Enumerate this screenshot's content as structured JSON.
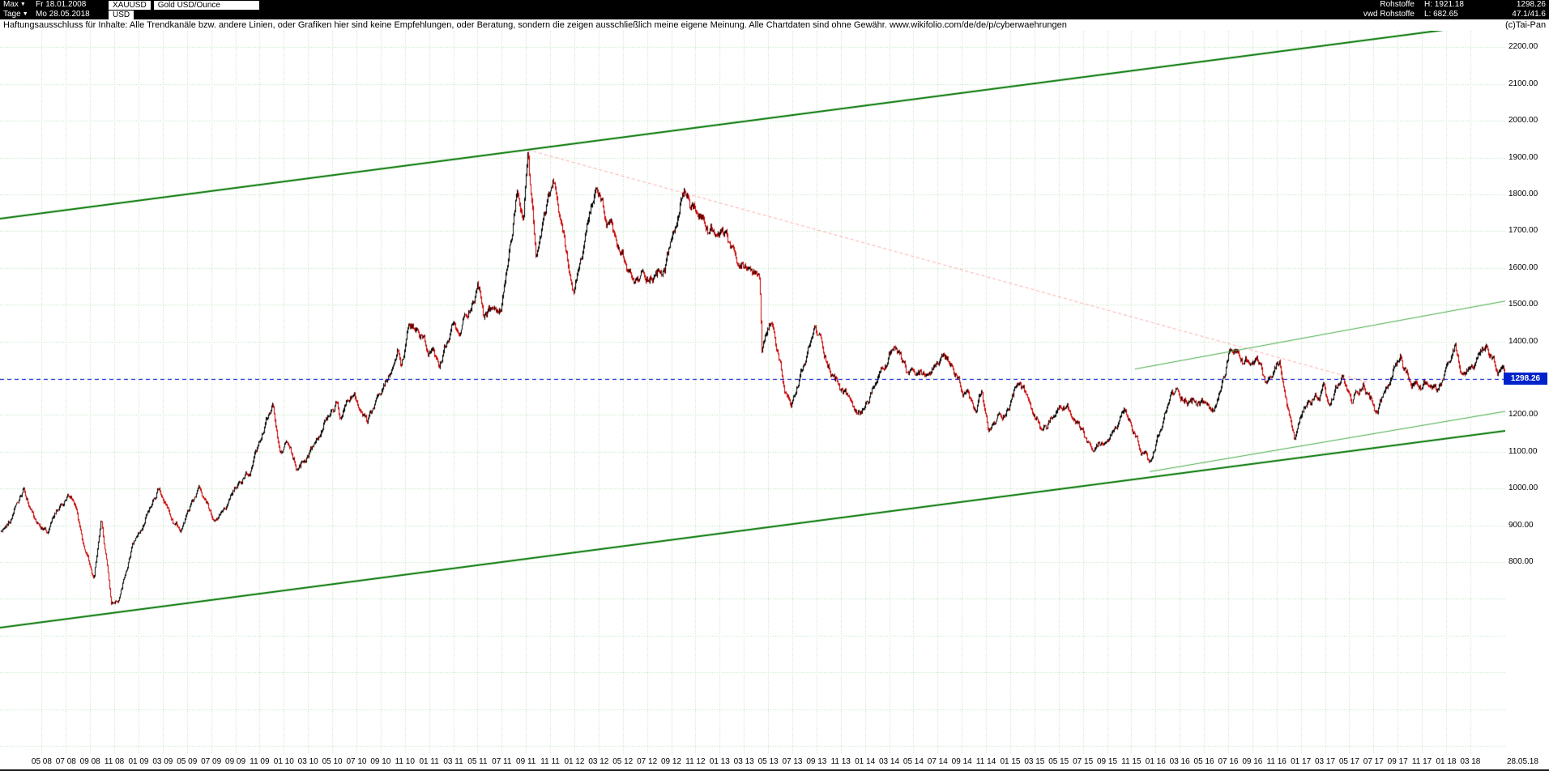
{
  "header": {
    "range_selector": "Max",
    "start_date": "Fr 18.01.2008",
    "symbol": "XAUUSD",
    "instrument_name": "Gold USD/Ounce",
    "period_selector": "Tage",
    "end_date": "Mo 28.05.2018",
    "currency": "USD",
    "category": "Rohstoffe",
    "feed": "vwd Rohstoffe",
    "high_label": "H: 1921.18",
    "low_label": "L: 682.65",
    "last_price": "1298.26",
    "change": "47.1/41.6"
  },
  "disclaimer": {
    "text": "Haftungsausschluss für Inhalte: Alle Trendkanäle bzw. andere Linien, oder Grafiken hier sind keine Empfehlungen, oder Beratung, sondern die zeigen ausschließlich meine eigene Meinung. Alle Chartdaten sind ohne Gewähr.  www.wikifolio.com/de/de/p/cyberwaehrungen",
    "copyright": "(c)Tai-Pan"
  },
  "chart_data": {
    "type": "candlestick",
    "title": "Gold USD/Ounce",
    "symbol": "XAUUSD",
    "currency": "USD",
    "x_range": [
      "2008-01-18",
      "2018-05-28"
    ],
    "y_range": [
      276,
      2245
    ],
    "grid_step": 100,
    "grid": "dotted-green",
    "high": 1921.18,
    "low": 682.65,
    "last_price": 1298.26,
    "last_price_label": "1298.26",
    "y_axis_labels": [
      "2200.00",
      "2100.00",
      "2000.00",
      "1900.00",
      "1800.00",
      "1700.00",
      "1600.00",
      "1500.00",
      "1400.00",
      "1200.00",
      "1100.00",
      "1000.00",
      "900.00",
      "800.00"
    ],
    "x_axis_labels": [
      "05 08",
      "07 08",
      "09 08",
      "11 08",
      "01 09",
      "03 09",
      "05 09",
      "07 09",
      "09 09",
      "11 09",
      "01 10",
      "03 10",
      "05 10",
      "07 10",
      "09 10",
      "11 10",
      "01 11",
      "03 11",
      "05 11",
      "07 11",
      "09 11",
      "11 11",
      "01 12",
      "03 12",
      "05 12",
      "07 12",
      "09 12",
      "11 12",
      "01 13",
      "03 13",
      "05 13",
      "07 13",
      "09 13",
      "11 13",
      "01 14",
      "03 14",
      "05 14",
      "07 14",
      "09 14",
      "11 14",
      "01 15",
      "03 15",
      "05 15",
      "07 15",
      "09 15",
      "11 15",
      "01 16",
      "03 16",
      "05 16",
      "07 16",
      "09 16",
      "11 16",
      "01 17",
      "03 17",
      "05 17",
      "07 17",
      "09 17",
      "11 17",
      "01 18",
      "03 18"
    ],
    "x_axis_end_label": "28.05.18",
    "series_monthly": [
      [
        "2008-01-18",
        881
      ],
      [
        "2008-02-15",
        922
      ],
      [
        "2008-03-17",
        1011
      ],
      [
        "2008-04-15",
        910
      ],
      [
        "2008-05-15",
        885
      ],
      [
        "2008-07-15",
        978
      ],
      [
        "2008-08-15",
        833
      ],
      [
        "2008-09-11",
        745
      ],
      [
        "2008-09-29",
        905
      ],
      [
        "2008-10-24",
        690
      ],
      [
        "2008-11-13",
        705
      ],
      [
        "2008-12-15",
        840
      ],
      [
        "2009-01-15",
        900
      ],
      [
        "2009-02-20",
        995
      ],
      [
        "2009-03-18",
        925
      ],
      [
        "2009-04-15",
        880
      ],
      [
        "2009-06-01",
        980
      ],
      [
        "2009-07-08",
        910
      ],
      [
        "2009-08-15",
        950
      ],
      [
        "2009-09-15",
        1000
      ],
      [
        "2009-10-15",
        1050
      ],
      [
        "2009-12-03",
        1215
      ],
      [
        "2009-12-22",
        1080
      ],
      [
        "2010-01-15",
        1120
      ],
      [
        "2010-02-05",
        1060
      ],
      [
        "2010-03-15",
        1110
      ],
      [
        "2010-05-12",
        1230
      ],
      [
        "2010-05-21",
        1180
      ],
      [
        "2010-06-21",
        1258
      ],
      [
        "2010-07-28",
        1160
      ],
      [
        "2010-09-15",
        1270
      ],
      [
        "2010-10-14",
        1375
      ],
      [
        "2010-10-22",
        1320
      ],
      [
        "2010-11-09",
        1410
      ],
      [
        "2010-12-15",
        1390
      ],
      [
        "2011-01-27",
        1310
      ],
      [
        "2011-03-02",
        1435
      ],
      [
        "2011-03-15",
        1395
      ],
      [
        "2011-05-02",
        1565
      ],
      [
        "2011-05-17",
        1480
      ],
      [
        "2011-07-01",
        1480
      ],
      [
        "2011-08-10",
        1800
      ],
      [
        "2011-08-25",
        1705
      ],
      [
        "2011-09-06",
        1920
      ],
      [
        "2011-09-26",
        1624
      ],
      [
        "2011-11-08",
        1800
      ],
      [
        "2011-12-29",
        1531
      ],
      [
        "2012-02-28",
        1785
      ],
      [
        "2012-04-15",
        1640
      ],
      [
        "2012-05-30",
        1540
      ],
      [
        "2012-07-15",
        1590
      ],
      [
        "2012-08-15",
        1600
      ],
      [
        "2012-10-04",
        1796
      ],
      [
        "2012-11-15",
        1720
      ],
      [
        "2012-12-15",
        1690
      ],
      [
        "2013-01-15",
        1660
      ],
      [
        "2013-02-21",
        1572
      ],
      [
        "2013-03-15",
        1600
      ],
      [
        "2013-04-11",
        1561
      ],
      [
        "2013-04-16",
        1360
      ],
      [
        "2013-05-10",
        1420
      ],
      [
        "2013-06-27",
        1192
      ],
      [
        "2013-08-27",
        1420
      ],
      [
        "2013-10-15",
        1310
      ],
      [
        "2013-12-19",
        1188
      ],
      [
        "2014-01-15",
        1250
      ],
      [
        "2014-03-14",
        1382
      ],
      [
        "2014-04-15",
        1290
      ],
      [
        "2014-05-15",
        1290
      ],
      [
        "2014-07-10",
        1339
      ],
      [
        "2014-08-15",
        1290
      ],
      [
        "2014-10-06",
        1190
      ],
      [
        "2014-10-21",
        1250
      ],
      [
        "2014-11-07",
        1140
      ],
      [
        "2014-12-15",
        1200
      ],
      [
        "2015-01-22",
        1300
      ],
      [
        "2015-03-17",
        1150
      ],
      [
        "2015-05-18",
        1225
      ],
      [
        "2015-07-24",
        1080
      ],
      [
        "2015-10-14",
        1185
      ],
      [
        "2015-12-17",
        1046
      ],
      [
        "2016-02-11",
        1245
      ],
      [
        "2016-03-15",
        1250
      ],
      [
        "2016-04-15",
        1240
      ],
      [
        "2016-05-30",
        1205
      ],
      [
        "2016-07-06",
        1370
      ],
      [
        "2016-08-15",
        1340
      ],
      [
        "2016-09-15",
        1325
      ],
      [
        "2016-10-07",
        1255
      ],
      [
        "2016-11-09",
        1330
      ],
      [
        "2016-12-15",
        1128
      ],
      [
        "2017-01-15",
        1200
      ],
      [
        "2017-02-27",
        1255
      ],
      [
        "2017-03-10",
        1200
      ],
      [
        "2017-04-13",
        1288
      ],
      [
        "2017-05-09",
        1218
      ],
      [
        "2017-06-06",
        1294
      ],
      [
        "2017-07-10",
        1210
      ],
      [
        "2017-09-08",
        1351
      ],
      [
        "2017-10-06",
        1270
      ],
      [
        "2017-11-15",
        1280
      ],
      [
        "2017-12-12",
        1240
      ],
      [
        "2018-01-25",
        1366
      ],
      [
        "2018-02-08",
        1310
      ],
      [
        "2018-03-15",
        1325
      ],
      [
        "2018-04-11",
        1355
      ],
      [
        "2018-05-21",
        1292
      ],
      [
        "2018-05-28",
        1298.26
      ]
    ],
    "trend_lines": [
      {
        "name": "upper-channel-line",
        "color": "#007500",
        "width": 2,
        "dash": [],
        "from": [
          "2008-01-18",
          1734
        ],
        "to": [
          "2018-05-28",
          2269
        ]
      },
      {
        "name": "lower-channel-line",
        "color": "#007500",
        "width": 2,
        "dash": [],
        "from": [
          "2008-01-18",
          622
        ],
        "to": [
          "2018-05-28",
          1157
        ]
      },
      {
        "name": "downtrend-dashed-line",
        "color": "#ffaaaa",
        "width": 1,
        "dash": [
          4,
          3
        ],
        "from": [
          "2011-09-06",
          1921.18
        ],
        "to": [
          "2017-06-15",
          1290
        ]
      },
      {
        "name": "inner-uptrend-upper-line",
        "color": "#44aa44",
        "width": 1,
        "dash": [],
        "from": [
          "2015-11-10",
          1325
        ],
        "to": [
          "2018-05-28",
          1510
        ]
      },
      {
        "name": "inner-uptrend-lower-line",
        "color": "#44aa44",
        "width": 1,
        "dash": [],
        "from": [
          "2015-12-17",
          1046
        ],
        "to": [
          "2018-05-28",
          1210
        ]
      }
    ],
    "colors": {
      "up": "#000000",
      "down": "#cc0000",
      "grid": "#b4e0b4",
      "last_line": "#0000dd",
      "label_bg": "#0022cc"
    }
  }
}
